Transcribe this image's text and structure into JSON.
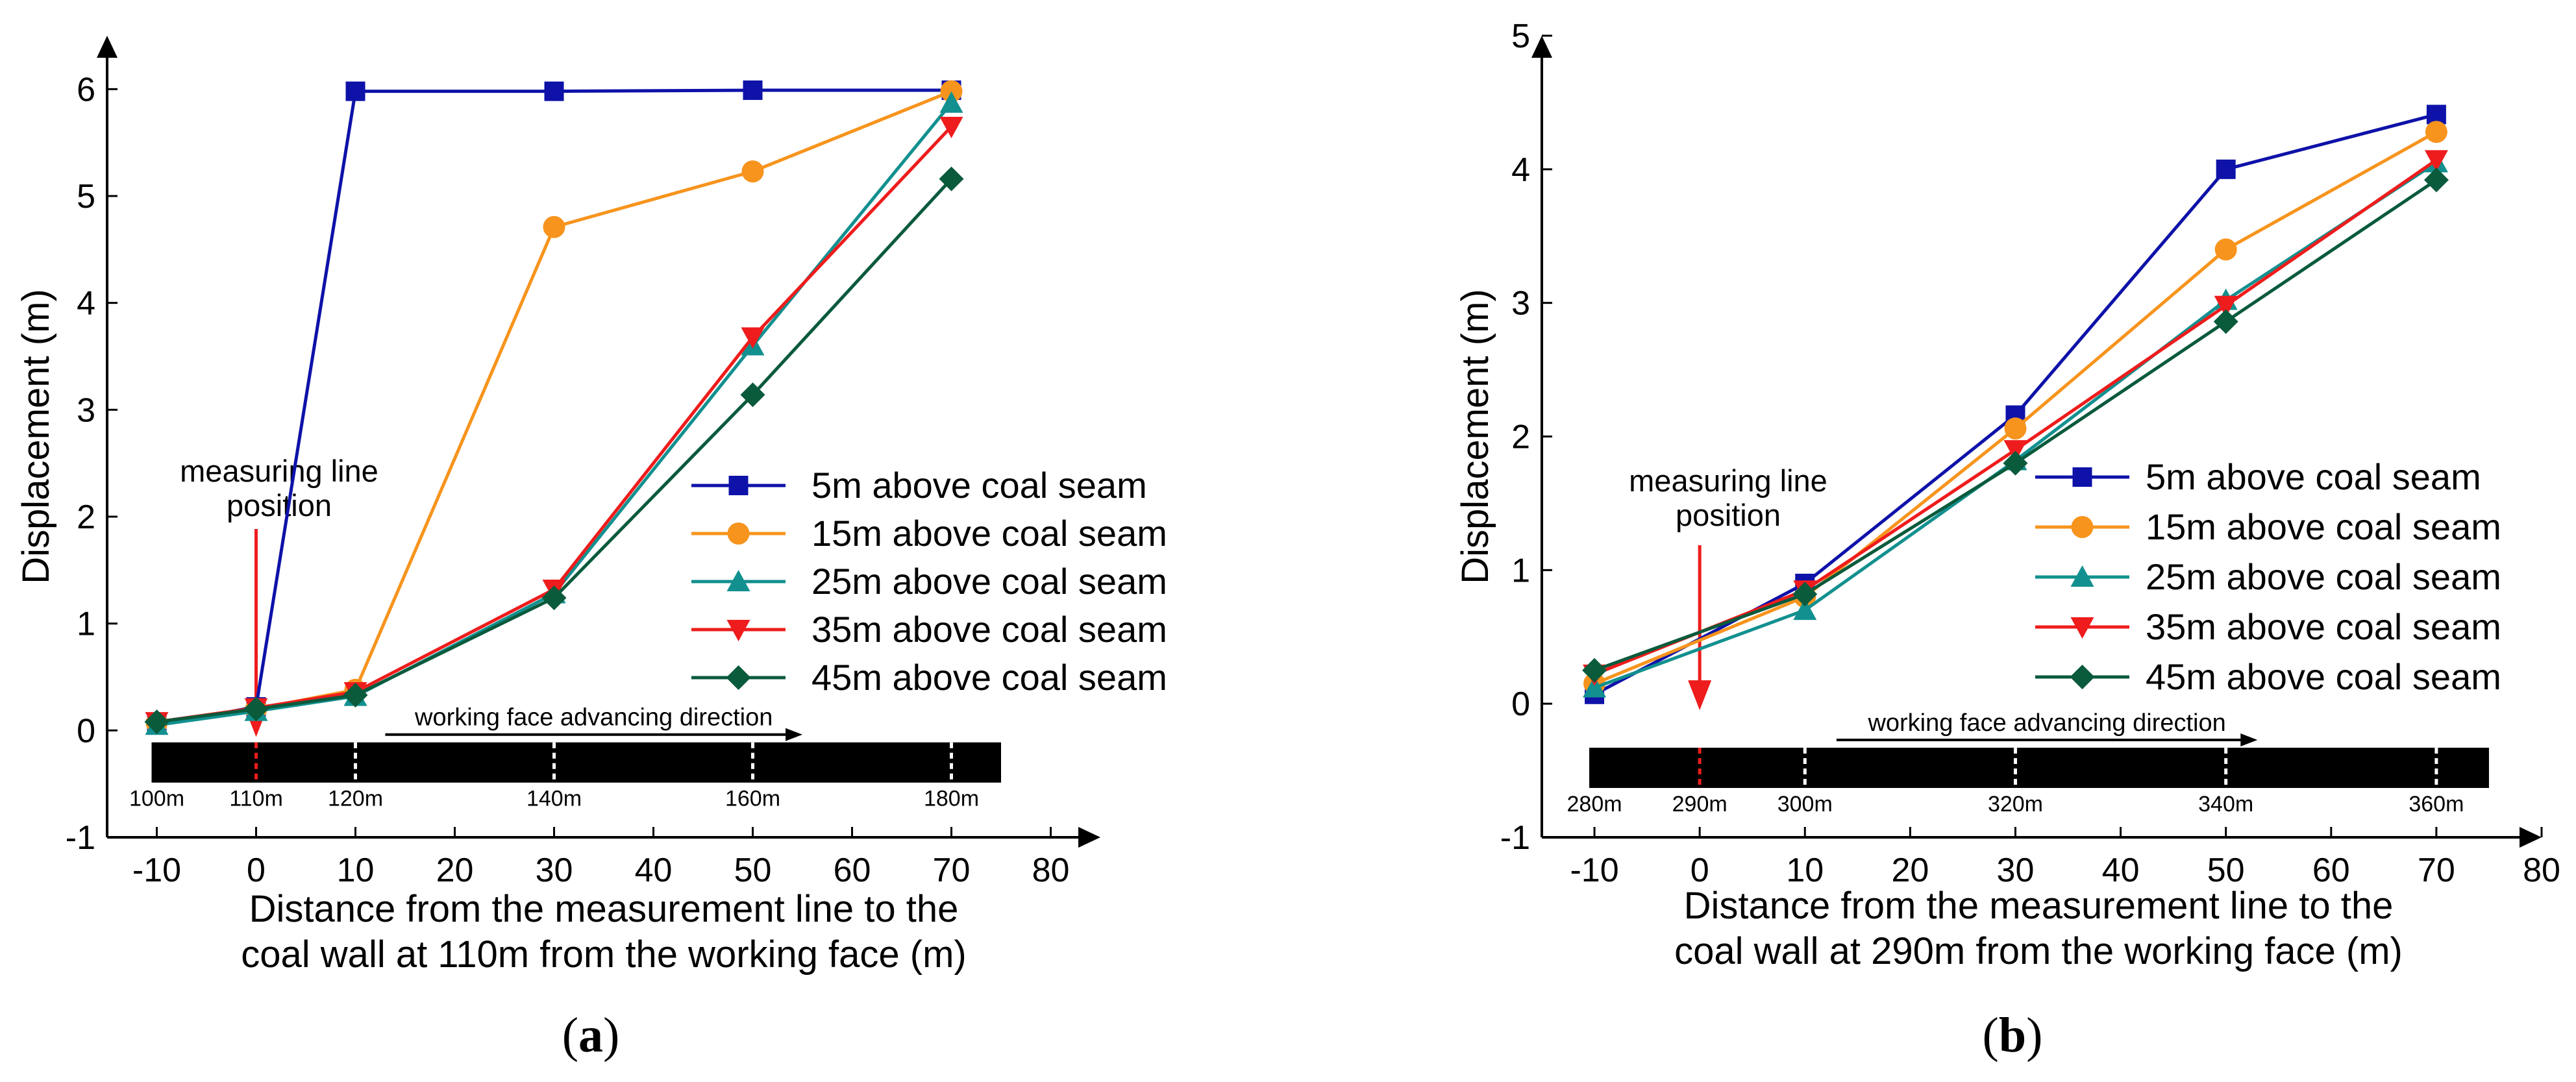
{
  "colors": {
    "5m": "#0e12a8",
    "15m": "#f7941d",
    "25m": "#12908f",
    "35m": "#ee1c1c",
    "45m": "#0a5a3c",
    "arrow": "#ee1c1c",
    "axis": "#000000"
  },
  "chart_data": [
    {
      "type": "line",
      "panel": "a",
      "caption_label": "a",
      "xlabel_line1": "Distance from the measurement line to the",
      "xlabel_line2": "coal wall at 110m from the working face (m)",
      "ylabel": "Displacement (m)",
      "xlim": [
        -15,
        85
      ],
      "ylim": [
        -1,
        6.5
      ],
      "x_ticks": [
        -10,
        0,
        10,
        20,
        30,
        40,
        50,
        60,
        70,
        80
      ],
      "x_tick_labels": [
        "-10",
        "0",
        "10",
        "20",
        "30",
        "40",
        "50",
        "60",
        "70",
        "80"
      ],
      "y_ticks": [
        -1,
        0,
        1,
        2,
        3,
        4,
        5,
        6
      ],
      "y_tick_labels": [
        "-1",
        "0",
        "1",
        "2",
        "3",
        "4",
        "5",
        "6"
      ],
      "x": [
        -10,
        0,
        10,
        30,
        50,
        70
      ],
      "series": [
        {
          "name": "5m above coal seam",
          "key": "5m",
          "marker": "square",
          "values": [
            0.05,
            0.22,
            5.98,
            5.98,
            5.99,
            5.99
          ]
        },
        {
          "name": "15m above coal seam",
          "key": "15m",
          "marker": "circle",
          "values": [
            0.07,
            0.2,
            0.38,
            4.71,
            5.23,
            5.98
          ]
        },
        {
          "name": "25m above coal seam",
          "key": "25m",
          "marker": "triangle-up",
          "values": [
            0.05,
            0.18,
            0.32,
            1.28,
            3.6,
            5.87
          ]
        },
        {
          "name": "35m above coal seam",
          "key": "35m",
          "marker": "triangle-down",
          "values": [
            0.08,
            0.21,
            0.36,
            1.32,
            3.68,
            5.65
          ]
        },
        {
          "name": "45m above coal seam",
          "key": "45m",
          "marker": "diamond",
          "values": [
            0.08,
            0.2,
            0.33,
            1.24,
            3.14,
            5.16
          ]
        }
      ],
      "annotation": {
        "line1": "measuring line",
        "line2": "position",
        "x": 0
      },
      "seam_bar": {
        "x_range": [
          -10,
          75
        ],
        "y": -0.3,
        "direction_label": "working face advancing direction",
        "direction_x": [
          13,
          55
        ],
        "marks": [
          {
            "x": -10,
            "label": "100m"
          },
          {
            "x": 0,
            "label": "110m"
          },
          {
            "x": 10,
            "label": "120m"
          },
          {
            "x": 30,
            "label": "140m"
          },
          {
            "x": 50,
            "label": "160m"
          },
          {
            "x": 70,
            "label": "180m"
          }
        ]
      },
      "legend_position": "right-middle"
    },
    {
      "type": "line",
      "panel": "b",
      "caption_label": "b",
      "xlabel_line1": "Distance from the measurement line to the",
      "xlabel_line2": "coal wall at 290m from the working face (m)",
      "ylabel": "Displacement (m)",
      "xlim": [
        -15,
        80
      ],
      "ylim": [
        -1,
        5
      ],
      "x_ticks": [
        -10,
        0,
        10,
        20,
        30,
        40,
        50,
        60,
        70,
        80
      ],
      "x_tick_labels": [
        "-10",
        "0",
        "10",
        "20",
        "30",
        "40",
        "50",
        "60",
        "70",
        "80"
      ],
      "y_ticks": [
        -1,
        0,
        1,
        2,
        3,
        4,
        5
      ],
      "y_tick_labels": [
        "-1",
        "0",
        "1",
        "2",
        "3",
        "4",
        "5"
      ],
      "x": [
        -10,
        10,
        30,
        50,
        70
      ],
      "series": [
        {
          "name": "5m above coal seam",
          "key": "5m",
          "marker": "square",
          "values": [
            0.07,
            0.9,
            2.16,
            4.0,
            4.41
          ]
        },
        {
          "name": "15m above coal seam",
          "key": "15m",
          "marker": "circle",
          "values": [
            0.15,
            0.8,
            2.06,
            3.4,
            4.28
          ]
        },
        {
          "name": "25m above coal seam",
          "key": "25m",
          "marker": "triangle-up",
          "values": [
            0.12,
            0.7,
            1.82,
            3.02,
            4.05
          ]
        },
        {
          "name": "35m above coal seam",
          "key": "35m",
          "marker": "triangle-down",
          "values": [
            0.22,
            0.85,
            1.9,
            2.98,
            4.07
          ]
        },
        {
          "name": "45m above coal seam",
          "key": "45m",
          "marker": "diamond",
          "values": [
            0.25,
            0.82,
            1.8,
            2.86,
            3.92
          ]
        }
      ],
      "annotation": {
        "line1": "measuring line",
        "line2": "position",
        "x": 0
      },
      "seam_bar": {
        "x_range": [
          -10,
          75
        ],
        "y": -0.48,
        "direction_label": "working face advancing direction",
        "direction_x": [
          13,
          53
        ],
        "marks": [
          {
            "x": -10,
            "label": "280m"
          },
          {
            "x": 0,
            "label": "290m"
          },
          {
            "x": 10,
            "label": "300m"
          },
          {
            "x": 30,
            "label": "320m"
          },
          {
            "x": 50,
            "label": "340m"
          },
          {
            "x": 70,
            "label": "360m"
          }
        ]
      },
      "legend_position": "right-middle"
    }
  ]
}
